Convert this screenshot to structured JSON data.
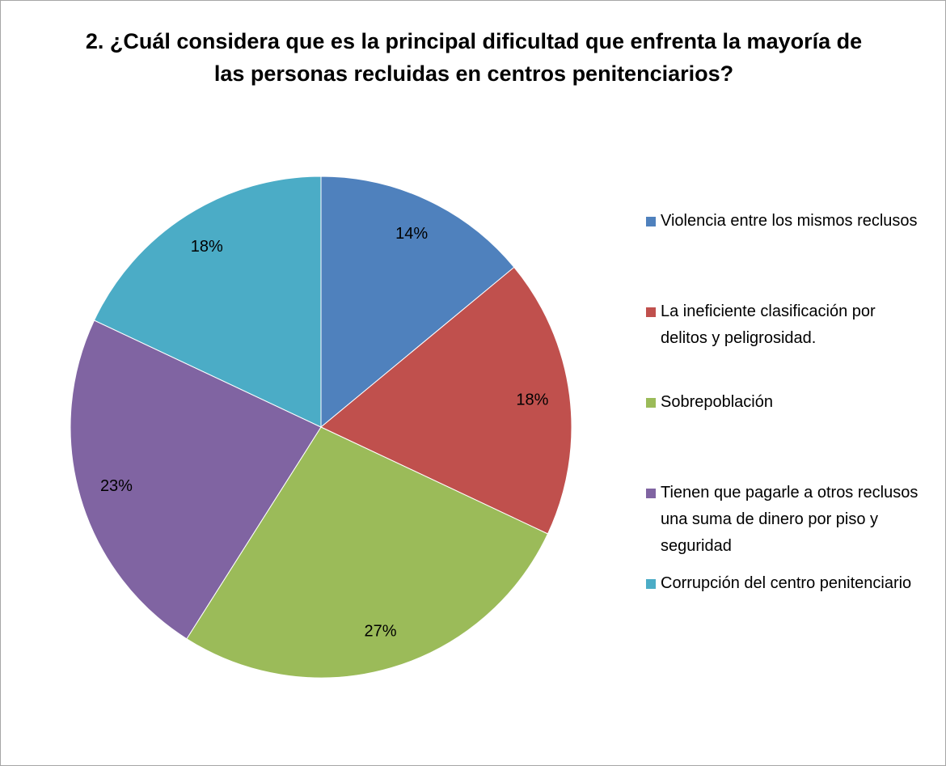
{
  "chart_data": {
    "type": "pie",
    "title": "2.  ¿Cuál considera que es la principal dificultad que enfrenta la mayoría de las personas recluidas en centros penitenciarios?",
    "categories": [
      "Violencia entre los mismos reclusos",
      "La ineficiente clasificación por delitos y peligrosidad.",
      "Sobrepoblación",
      "Tienen que pagarle a otros reclusos una suma de dinero por piso y seguridad",
      "Corrupción del centro penitenciario"
    ],
    "values": [
      14,
      18,
      27,
      23,
      18
    ],
    "value_labels": [
      "14%",
      "18%",
      "27%",
      "23%",
      "18%"
    ],
    "colors": [
      "#4f81bd",
      "#c0504d",
      "#9bbb59",
      "#8064a2",
      "#4bacc6"
    ],
    "legend": "right"
  }
}
